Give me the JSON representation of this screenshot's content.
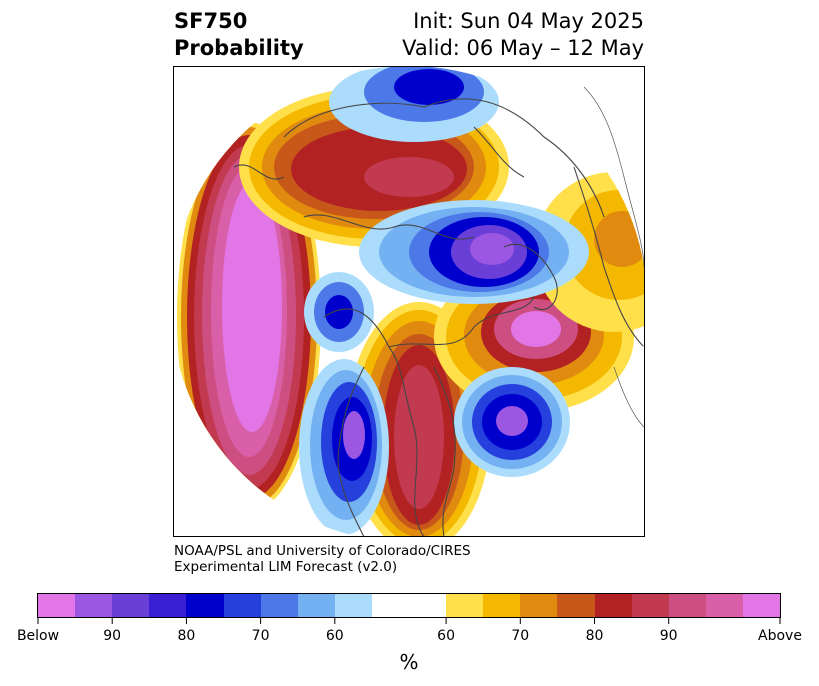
{
  "header": {
    "variable": "SF750",
    "product": "Probability",
    "init": "Init: Sun 04 May 2025",
    "valid": "Valid: 06 May – 12 May"
  },
  "credit": {
    "line1": "NOAA/PSL and University of Colorado/CIRES",
    "line2": "Experimental LIM Forecast (v2.0)"
  },
  "colorbar": {
    "unit": "%",
    "colors": [
      "#e276e6",
      "#9b57e2",
      "#6a3fd8",
      "#3a1ed2",
      "#0000cd",
      "#2540dc",
      "#4c78e8",
      "#74b1f2",
      "#acdcfc",
      "#ffffff",
      "#ffffff",
      "#ffe04a",
      "#f5b800",
      "#e08a10",
      "#c8581a",
      "#b22222",
      "#c23a50",
      "#cd4f82",
      "#d85fa8",
      "#e276e6"
    ],
    "tick_labels": [
      "Below",
      "90",
      "80",
      "70",
      "60",
      "60",
      "70",
      "80",
      "90",
      "Above"
    ]
  },
  "map": {
    "below_palette": [
      "#acdcfc",
      "#74b1f2",
      "#4c78e8",
      "#2540dc",
      "#0000cd",
      "#3a1ed2",
      "#6a3fd8",
      "#9b57e2"
    ],
    "above_palette": [
      "#ffe04a",
      "#f5b800",
      "#e08a10",
      "#c8581a",
      "#b22222",
      "#c23a50",
      "#cd4f82",
      "#d85fa8",
      "#e276e6"
    ],
    "coastline_color": "#444444"
  }
}
